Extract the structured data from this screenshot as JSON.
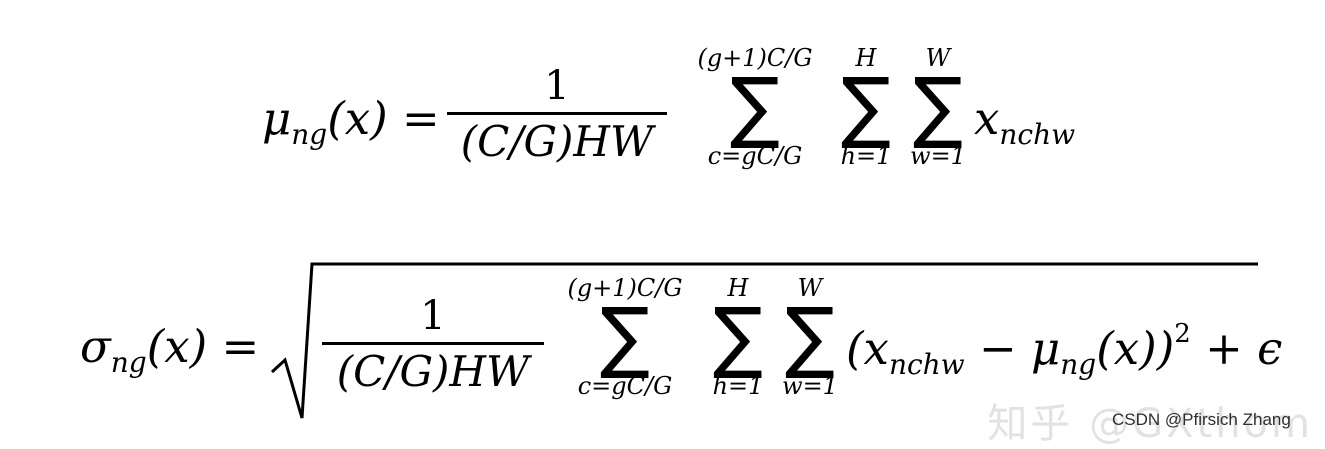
{
  "watermark": {
    "text": "CSDN @Pfirsich Zhang",
    "site_text": "知乎 @GXthom"
  },
  "formula_mean": {
    "lhs_symbol": "μ",
    "lhs_subscript": "ng",
    "lhs_arg": "(x) =",
    "frac_numerator": "1",
    "frac_denominator": "(C/G)HW",
    "sum_c_upper": "(g+1)C/G",
    "sum_c_lower": "c=gC/G",
    "sum_h_upper": "H",
    "sum_h_lower": "h=1",
    "sum_w_upper": "W",
    "sum_w_lower": "w=1",
    "term_symbol": "x",
    "term_subscript": "nchw"
  },
  "formula_std": {
    "lhs_symbol": "σ",
    "lhs_subscript": "ng",
    "lhs_arg": "(x) =",
    "frac_numerator": "1",
    "frac_denominator": "(C/G)HW",
    "sum_c_upper": "(g+1)C/G",
    "sum_c_lower": "c=gC/G",
    "sum_h_upper": "H",
    "sum_h_lower": "h=1",
    "sum_w_upper": "W",
    "sum_w_lower": "w=1",
    "term_open": "(x",
    "term_subscript": "nchw",
    "term_minus": "−",
    "term_mu": "μ",
    "term_mu_subscript": "ng",
    "term_close": "(x))",
    "term_exponent": "2",
    "term_plus": "+",
    "term_epsilon": "ϵ"
  }
}
